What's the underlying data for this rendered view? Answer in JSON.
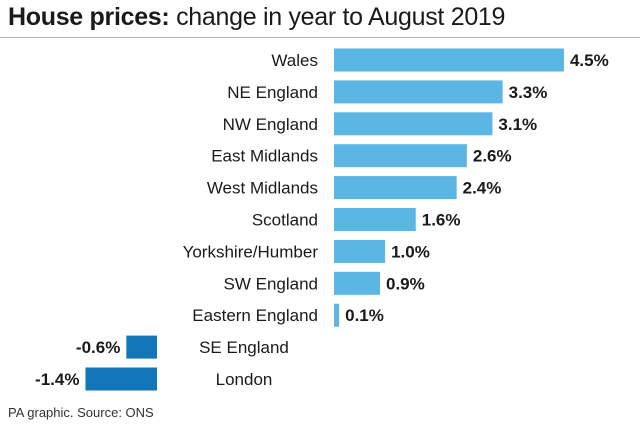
{
  "title_bold": "House prices:",
  "title_rest": " change in year to August 2019",
  "footer": "PA graphic. Source: ONS",
  "colors": {
    "positive": "#5bb6e4",
    "negative": "#1276b8",
    "text": "#1a1a1a"
  },
  "chart_data": {
    "type": "bar",
    "orientation": "horizontal",
    "title": "House prices: change in year to August 2019",
    "unit": "%",
    "categories": [
      "Wales",
      "NE England",
      "NW England",
      "East Midlands",
      "West Midlands",
      "Scotland",
      "Yorkshire/Humber",
      "SW England",
      "Eastern England",
      "SE England",
      "London"
    ],
    "values": [
      4.5,
      3.3,
      3.1,
      2.6,
      2.4,
      1.6,
      1.0,
      0.9,
      0.1,
      -0.6,
      -1.4
    ],
    "value_labels": [
      "4.5%",
      "3.3%",
      "3.1%",
      "2.6%",
      "2.4%",
      "1.6%",
      "1.0%",
      "0.9%",
      "0.1%",
      "-0.6%",
      "-1.4%"
    ],
    "xlabel": "",
    "ylabel": "",
    "grid": false,
    "legend": "none"
  }
}
